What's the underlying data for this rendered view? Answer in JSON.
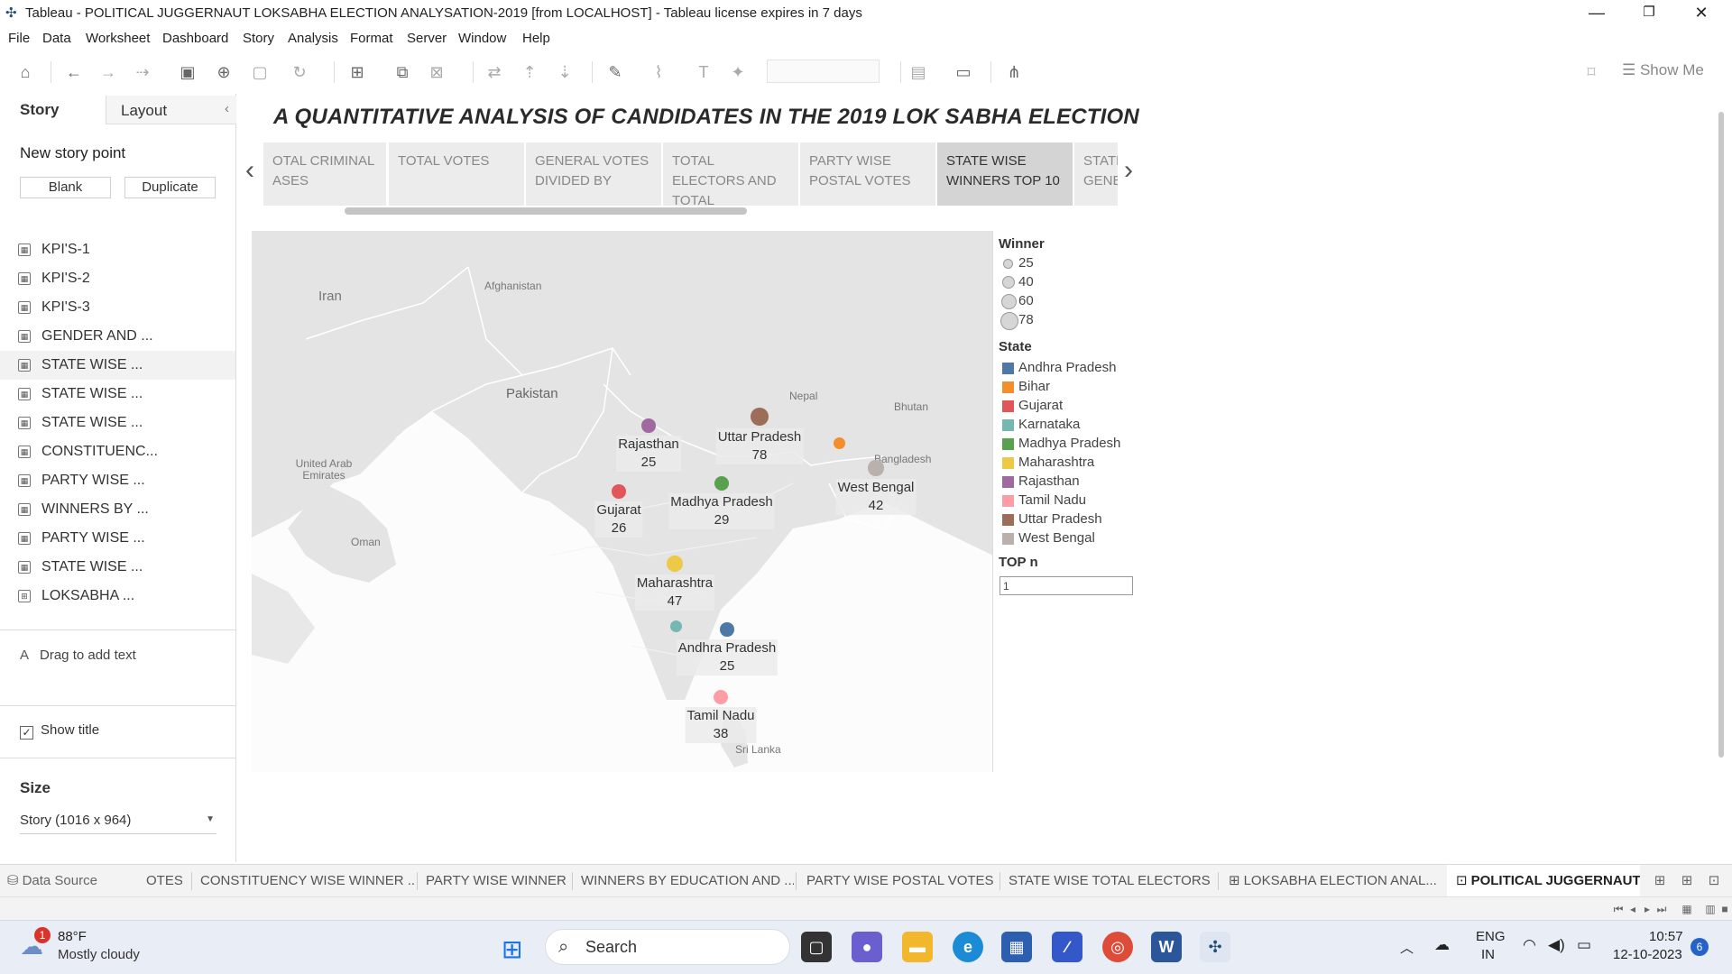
{
  "window": {
    "title": "Tableau - POLITICAL JUGGERNAUT LOKSABHA ELECTION ANALYSATION-2019 [from LOCALHOST] - Tableau license expires in 7 days",
    "minimize": "—",
    "maximize": "❐",
    "close": "✕"
  },
  "menu": [
    "File",
    "Data",
    "Worksheet",
    "Dashboard",
    "Story",
    "Analysis",
    "Format",
    "Server",
    "Window",
    "Help"
  ],
  "toolbar": {
    "show_me": "Show Me"
  },
  "left_pane": {
    "tab_story": "Story",
    "tab_layout": "Layout",
    "new_story_point": "New story point",
    "blank": "Blank",
    "duplicate": "Duplicate",
    "sheets": [
      "KPI'S-1",
      "KPI'S-2",
      "KPI'S-3",
      "GENDER AND ...",
      "STATE WISE ...",
      "STATE WISE ...",
      "STATE WISE ...",
      "CONSTITUENC...",
      "PARTY WISE ...",
      "WINNERS BY ...",
      "PARTY WISE ...",
      "STATE WISE ...",
      "LOKSABHA ..."
    ],
    "drag_text": "Drag to add text",
    "show_title": "Show title",
    "size_label": "Size",
    "size_value": "Story (1016 x 964)"
  },
  "story": {
    "title": "A QUANTITATIVE ANALYSIS OF CANDIDATES IN THE 2019 LOK SABHA ELECTION",
    "points": [
      {
        "label": "OTAL CRIMINAL ASES",
        "selected": false
      },
      {
        "label": "TOTAL VOTES",
        "selected": false
      },
      {
        "label": "GENERAL VOTES DIVIDED BY",
        "selected": false
      },
      {
        "label": "TOTAL ELECTORS AND TOTAL",
        "selected": false
      },
      {
        "label": "PARTY WISE POSTAL VOTES",
        "selected": false
      },
      {
        "label": "STATE WISE WINNERS TOP 10",
        "selected": true
      },
      {
        "label": "STATE GENE",
        "selected": false
      }
    ]
  },
  "map": {
    "labels": {
      "iran": "Iran",
      "afghanistan": "Afghanistan",
      "pakistan": "Pakistan",
      "nepal": "Nepal",
      "bhutan": "Bhutan",
      "bangladesh": "Bangladesh",
      "uae": "United Arab Emirates",
      "oman": "Oman",
      "sri_lanka": "Sri Lanka"
    }
  },
  "chart_data": {
    "type": "scatter",
    "title": "",
    "size_field": "Winner",
    "color_field": "State",
    "points": [
      {
        "state": "Rajasthan",
        "winner": 25,
        "color": "#a06aa0"
      },
      {
        "state": "Uttar Pradesh",
        "winner": 78,
        "color": "#9c6d58"
      },
      {
        "state": "Bihar",
        "winner": null,
        "color": "#f28e2b"
      },
      {
        "state": "West Bengal",
        "winner": 42,
        "color": "#bab0ac"
      },
      {
        "state": "Gujarat",
        "winner": 26,
        "color": "#e15759"
      },
      {
        "state": "Madhya Pradesh",
        "winner": 29,
        "color": "#59a14f"
      },
      {
        "state": "Maharashtra",
        "winner": 47,
        "color": "#edc948"
      },
      {
        "state": "Karnataka",
        "winner": null,
        "color": "#76b7b2"
      },
      {
        "state": "Andhra Pradesh",
        "winner": 25,
        "color": "#4e79a7"
      },
      {
        "state": "Tamil Nadu",
        "winner": 38,
        "color": "#ff9da7"
      }
    ]
  },
  "legend": {
    "size_title": "Winner",
    "size_values": [
      "25",
      "40",
      "60",
      "78"
    ],
    "color_title": "State",
    "states": [
      {
        "name": "Andhra Pradesh",
        "color": "#4e79a7"
      },
      {
        "name": "Bihar",
        "color": "#f28e2b"
      },
      {
        "name": "Gujarat",
        "color": "#e15759"
      },
      {
        "name": "Karnataka",
        "color": "#76b7b2"
      },
      {
        "name": "Madhya Pradesh",
        "color": "#59a14f"
      },
      {
        "name": "Maharashtra",
        "color": "#edc948"
      },
      {
        "name": "Rajasthan",
        "color": "#a06aa0"
      },
      {
        "name": "Tamil Nadu",
        "color": "#ff9da7"
      },
      {
        "name": "Uttar Pradesh",
        "color": "#9c6d58"
      },
      {
        "name": "West Bengal",
        "color": "#bab0ac"
      }
    ],
    "topn_title": "TOP n",
    "topn_value": "1"
  },
  "sheet_tabs": {
    "data_source": "Data Source",
    "tabs": [
      "OTES",
      "CONSTITUENCY WISE WINNER ...",
      "PARTY WISE WINNER",
      "WINNERS BY EDUCATION AND ...",
      "PARTY WISE POSTAL VOTES",
      "STATE WISE TOTAL ELECTORS",
      "LOKSABHA ELECTION ANAL...",
      "POLITICAL JUGGERNAUT"
    ]
  },
  "taskbar": {
    "weather_temp": "88°F",
    "weather_desc": "Mostly cloudy",
    "weather_badge": "1",
    "search": "Search",
    "lang1": "ENG",
    "lang2": "IN",
    "time": "10:57",
    "date": "12-10-2023",
    "notif": "6"
  }
}
